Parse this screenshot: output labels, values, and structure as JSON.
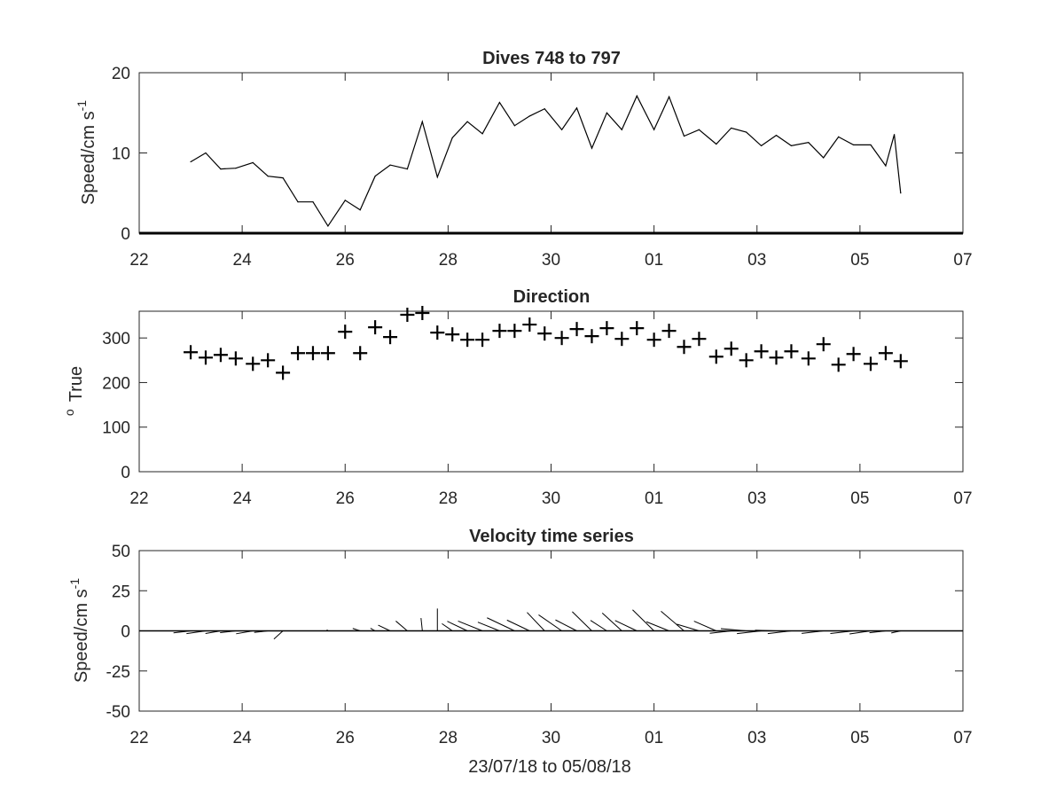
{
  "x_tick_labels": [
    "22",
    "24",
    "26",
    "28",
    "30",
    "01",
    "03",
    "05",
    "07"
  ],
  "xlabel": "23/07/18 to 05/08/18",
  "chart_data": [
    {
      "type": "line",
      "title": "Dives 748 to 797",
      "ylabel": "Speed/cm s",
      "ylabel_superscript": "-1",
      "xlim": [
        "2018-07-22",
        "2018-08-07"
      ],
      "ylim": [
        0,
        20
      ],
      "y_ticks": [
        0,
        10,
        20
      ],
      "x": [
        "2018-07-23 00:00",
        "2018-07-23 07:00",
        "2018-07-23 14:00",
        "2018-07-23 21:00",
        "2018-07-24 05:00",
        "2018-07-24 12:00",
        "2018-07-24 19:00",
        "2018-07-25 02:00",
        "2018-07-25 09:00",
        "2018-07-25 16:00",
        "2018-07-26 00:00",
        "2018-07-26 07:00",
        "2018-07-26 14:00",
        "2018-07-26 21:00",
        "2018-07-27 05:00",
        "2018-07-27 12:00",
        "2018-07-27 19:00",
        "2018-07-28 02:00",
        "2018-07-28 09:00",
        "2018-07-28 16:00",
        "2018-07-29 00:00",
        "2018-07-29 07:00",
        "2018-07-29 14:00",
        "2018-07-29 21:00",
        "2018-07-30 05:00",
        "2018-07-30 12:00",
        "2018-07-30 19:00",
        "2018-07-31 02:00",
        "2018-07-31 09:00",
        "2018-07-31 16:00",
        "2018-08-01 00:00",
        "2018-08-01 07:00",
        "2018-08-01 14:00",
        "2018-08-01 21:00",
        "2018-08-02 05:00",
        "2018-08-02 12:00",
        "2018-08-02 19:00",
        "2018-08-03 02:00",
        "2018-08-03 09:00",
        "2018-08-03 16:00",
        "2018-08-04 00:00",
        "2018-08-04 07:00",
        "2018-08-04 14:00",
        "2018-08-04 21:00",
        "2018-08-05 05:00",
        "2018-08-05 12:00",
        "2018-08-05 16:00",
        "2018-08-05 19:00"
      ],
      "values": [
        8.9,
        10.0,
        8.0,
        8.1,
        8.8,
        7.1,
        6.9,
        3.9,
        3.9,
        0.9,
        4.1,
        2.9,
        7.1,
        8.5,
        8.0,
        13.9,
        7.0,
        11.9,
        13.9,
        12.4,
        16.3,
        13.4,
        14.6,
        15.5,
        12.9,
        15.6,
        10.6,
        15.0,
        12.9,
        17.1,
        12.9,
        17.0,
        12.1,
        12.9,
        11.1,
        13.1,
        12.6,
        10.9,
        12.2,
        10.9,
        11.3,
        9.4,
        12.0,
        11.0,
        11.0,
        8.4,
        12.3,
        5.0
      ]
    },
    {
      "type": "scatter",
      "title": "Direction",
      "ylabel": "True",
      "ylabel_superscript": "o",
      "xlim": [
        "2018-07-22",
        "2018-08-07"
      ],
      "ylim": [
        0,
        360
      ],
      "y_ticks": [
        0,
        100,
        200,
        300
      ],
      "marker": "+",
      "x": [
        "2018-07-23 00:00",
        "2018-07-23 07:00",
        "2018-07-23 14:00",
        "2018-07-23 21:00",
        "2018-07-24 05:00",
        "2018-07-24 12:00",
        "2018-07-24 19:00",
        "2018-07-25 02:00",
        "2018-07-25 09:00",
        "2018-07-25 16:00",
        "2018-07-26 00:00",
        "2018-07-26 07:00",
        "2018-07-26 14:00",
        "2018-07-26 21:00",
        "2018-07-27 05:00",
        "2018-07-27 12:00",
        "2018-07-27 19:00",
        "2018-07-28 02:00",
        "2018-07-28 09:00",
        "2018-07-28 16:00",
        "2018-07-29 00:00",
        "2018-07-29 07:00",
        "2018-07-29 14:00",
        "2018-07-29 21:00",
        "2018-07-30 05:00",
        "2018-07-30 12:00",
        "2018-07-30 19:00",
        "2018-07-31 02:00",
        "2018-07-31 09:00",
        "2018-07-31 16:00",
        "2018-08-01 00:00",
        "2018-08-01 07:00",
        "2018-08-01 14:00",
        "2018-08-01 21:00",
        "2018-08-02 05:00",
        "2018-08-02 12:00",
        "2018-08-02 19:00",
        "2018-08-03 02:00",
        "2018-08-03 09:00",
        "2018-08-03 16:00",
        "2018-08-04 00:00",
        "2018-08-04 07:00",
        "2018-08-04 14:00",
        "2018-08-04 21:00",
        "2018-08-05 05:00",
        "2018-08-05 12:00",
        "2018-08-05 19:00"
      ],
      "values": [
        268,
        256,
        262,
        254,
        242,
        250,
        222,
        266,
        266,
        266,
        314,
        266,
        324,
        302,
        352,
        356,
        312,
        308,
        296,
        296,
        316,
        316,
        330,
        310,
        300,
        320,
        304,
        322,
        298,
        322,
        296,
        316,
        280,
        298,
        258,
        276,
        250,
        270,
        256,
        270,
        254,
        286,
        240,
        264,
        242,
        266,
        248
      ]
    },
    {
      "type": "quiver",
      "title": "Velocity time series",
      "ylabel": "Speed/cm s",
      "ylabel_superscript": "-1",
      "xlim": [
        "2018-07-22",
        "2018-08-07"
      ],
      "ylim": [
        -50,
        50
      ],
      "y_ticks": [
        -50,
        -25,
        0,
        25,
        50
      ],
      "x": [
        "2018-07-23 00:00",
        "2018-07-23 07:00",
        "2018-07-23 14:00",
        "2018-07-23 21:00",
        "2018-07-24 05:00",
        "2018-07-24 12:00",
        "2018-07-24 19:00",
        "2018-07-25 16:00",
        "2018-07-26 07:00",
        "2018-07-26 14:00",
        "2018-07-26 21:00",
        "2018-07-27 05:00",
        "2018-07-27 12:00",
        "2018-07-27 19:00",
        "2018-07-28 02:00",
        "2018-07-28 09:00",
        "2018-07-28 16:00",
        "2018-07-29 00:00",
        "2018-07-29 07:00",
        "2018-07-29 14:00",
        "2018-07-29 21:00",
        "2018-07-30 05:00",
        "2018-07-30 12:00",
        "2018-07-30 19:00",
        "2018-07-31 02:00",
        "2018-07-31 09:00",
        "2018-07-31 16:00",
        "2018-08-01 00:00",
        "2018-08-01 07:00",
        "2018-08-01 14:00",
        "2018-08-01 21:00",
        "2018-08-02 05:00",
        "2018-08-02 12:00",
        "2018-08-02 19:00",
        "2018-08-03 02:00",
        "2018-08-03 09:00",
        "2018-08-03 16:00",
        "2018-08-04 00:00",
        "2018-08-04 07:00",
        "2018-08-04 14:00",
        "2018-08-04 21:00",
        "2018-08-05 05:00",
        "2018-08-05 12:00",
        "2018-08-05 19:00"
      ],
      "speed": [
        8.9,
        10.0,
        8.0,
        8.1,
        8.8,
        7.1,
        6.9,
        0.9,
        4.1,
        2.9,
        7.1,
        8.5,
        8.0,
        13.9,
        7.0,
        11.9,
        13.9,
        12.4,
        16.3,
        13.4,
        14.6,
        15.5,
        12.9,
        15.6,
        10.6,
        15.0,
        12.9,
        17.1,
        12.9,
        17.0,
        12.1,
        12.9,
        11.1,
        13.1,
        12.6,
        10.9,
        12.2,
        10.9,
        11.3,
        9.4,
        12.0,
        11.0,
        8.4,
        5.0
      ],
      "direction_deg_true": [
        262,
        260,
        258,
        262,
        258,
        262,
        222,
        320,
        292,
        304,
        300,
        316,
        355,
        360,
        310,
        300,
        296,
        296,
        300,
        300,
        322,
        310,
        302,
        320,
        308,
        318,
        300,
        320,
        296,
        316,
        290,
        298,
        262,
        276,
        262,
        272,
        262,
        270,
        262,
        270,
        262,
        260,
        262,
        255
      ]
    }
  ]
}
